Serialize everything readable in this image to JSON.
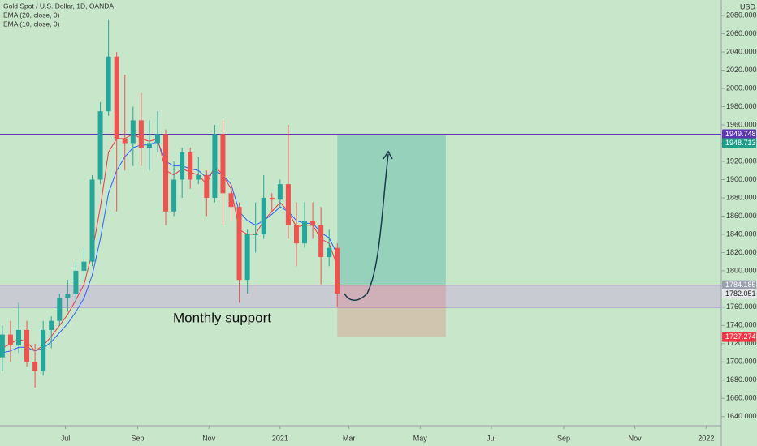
{
  "chart_data": {
    "type": "candlestick",
    "title": "Gold Spot / U.S. Dollar, 1D, OANDA",
    "y_axis_label": "USD",
    "x": [
      "2020-05-08",
      "2020-05-15",
      "2020-05-22",
      "2020-05-29",
      "2020-06-05",
      "2020-06-12",
      "2020-06-19",
      "2020-06-26",
      "2020-07-03",
      "2020-07-10",
      "2020-07-17",
      "2020-07-24",
      "2020-07-31",
      "2020-08-07",
      "2020-08-14",
      "2020-08-21",
      "2020-08-28",
      "2020-09-04",
      "2020-09-11",
      "2020-09-18",
      "2020-09-25",
      "2020-10-02",
      "2020-10-09",
      "2020-10-16",
      "2020-10-23",
      "2020-10-30",
      "2020-11-06",
      "2020-11-13",
      "2020-11-20",
      "2020-11-27",
      "2020-12-04",
      "2020-12-11",
      "2020-12-18",
      "2020-12-25",
      "2021-01-01",
      "2021-01-08",
      "2021-01-15",
      "2021-01-22",
      "2021-01-29",
      "2021-02-05",
      "2021-02-12",
      "2021-02-19"
    ],
    "open": [
      1705,
      1730,
      1718,
      1735,
      1700,
      1690,
      1735,
      1745,
      1770,
      1775,
      1800,
      1810,
      1900,
      1975,
      2035,
      1945,
      1940,
      1965,
      1935,
      1940,
      1950,
      1865,
      1900,
      1930,
      1900,
      1905,
      1880,
      1950,
      1885,
      1870,
      1790,
      1840,
      1840,
      1880,
      1878,
      1895,
      1850,
      1830,
      1855,
      1850,
      1815,
      1825
    ],
    "high": [
      1740,
      1745,
      1765,
      1745,
      1720,
      1745,
      1750,
      1775,
      1790,
      1810,
      1825,
      1905,
      1985,
      2075,
      2040,
      2015,
      1980,
      1995,
      1965,
      1975,
      1955,
      1920,
      1935,
      1935,
      1925,
      1910,
      1960,
      1965,
      1895,
      1875,
      1845,
      1875,
      1905,
      1885,
      1900,
      1960,
      1875,
      1875,
      1875,
      1870,
      1845,
      1830
    ],
    "low": [
      1690,
      1700,
      1710,
      1695,
      1672,
      1685,
      1715,
      1740,
      1755,
      1765,
      1790,
      1805,
      1895,
      1970,
      1865,
      1910,
      1915,
      1915,
      1910,
      1930,
      1850,
      1860,
      1880,
      1890,
      1895,
      1860,
      1875,
      1850,
      1855,
      1765,
      1775,
      1820,
      1835,
      1865,
      1870,
      1835,
      1805,
      1825,
      1835,
      1785,
      1805,
      1760
    ],
    "close": [
      1730,
      1718,
      1735,
      1700,
      1690,
      1735,
      1745,
      1770,
      1775,
      1800,
      1810,
      1900,
      1975,
      2035,
      1945,
      1940,
      1965,
      1935,
      1940,
      1950,
      1865,
      1900,
      1930,
      1900,
      1905,
      1880,
      1950,
      1885,
      1870,
      1790,
      1840,
      1840,
      1880,
      1878,
      1895,
      1850,
      1830,
      1855,
      1850,
      1815,
      1825,
      1775
    ],
    "up_color": "#26a69a",
    "down_color": "#ef5350",
    "series": [
      {
        "name": "EMA (20, close, 0)",
        "color": "#2962ff",
        "values": [
          1710,
          1712,
          1716,
          1716,
          1712,
          1715,
          1722,
          1732,
          1742,
          1755,
          1770,
          1795,
          1835,
          1885,
          1910,
          1925,
          1935,
          1938,
          1938,
          1942,
          1920,
          1915,
          1915,
          1912,
          1910,
          1902,
          1910,
          1905,
          1895,
          1865,
          1855,
          1850,
          1855,
          1862,
          1870,
          1865,
          1855,
          1852,
          1852,
          1842,
          1836,
          1818
        ]
      },
      {
        "name": "EMA (10, close, 0)",
        "color": "#f23645",
        "values": [
          1715,
          1720,
          1725,
          1722,
          1712,
          1718,
          1728,
          1740,
          1752,
          1768,
          1785,
          1820,
          1870,
          1930,
          1945,
          1945,
          1950,
          1945,
          1942,
          1945,
          1910,
          1905,
          1912,
          1908,
          1905,
          1895,
          1915,
          1905,
          1890,
          1845,
          1840,
          1840,
          1855,
          1865,
          1875,
          1865,
          1848,
          1850,
          1850,
          1835,
          1830,
          1805
        ]
      }
    ],
    "xlim": [
      "2020-05-06",
      "2022-01-14"
    ],
    "xticks": [
      {
        "value": "2020-07-01",
        "label": "Jul"
      },
      {
        "value": "2020-09-01",
        "label": "Sep"
      },
      {
        "value": "2020-11-01",
        "label": "Nov"
      },
      {
        "value": "2021-01-01",
        "label": "2021"
      },
      {
        "value": "2021-03-01",
        "label": "Mar"
      },
      {
        "value": "2021-05-01",
        "label": "May"
      },
      {
        "value": "2021-07-01",
        "label": "Jul"
      },
      {
        "value": "2021-09-01",
        "label": "Sep"
      },
      {
        "value": "2021-11-01",
        "label": "Nov"
      },
      {
        "value": "2022-01-01",
        "label": "2022"
      }
    ],
    "ylim": [
      1630,
      2097
    ],
    "yticks": [
      {
        "value": 1640,
        "label": "1640.000"
      },
      {
        "value": 1660,
        "label": "1660.000"
      },
      {
        "value": 1680,
        "label": "1680.000"
      },
      {
        "value": 1700,
        "label": "1700.000"
      },
      {
        "value": 1720,
        "label": "1720.000"
      },
      {
        "value": 1740,
        "label": "1740.000"
      },
      {
        "value": 1760,
        "label": "1760.000"
      },
      {
        "value": 1780,
        "label": "1780.000"
      },
      {
        "value": 1800,
        "label": "1800.000"
      },
      {
        "value": 1820,
        "label": "1820.000"
      },
      {
        "value": 1840,
        "label": "1840.000"
      },
      {
        "value": 1860,
        "label": "1860.000"
      },
      {
        "value": 1880,
        "label": "1880.000"
      },
      {
        "value": 1900,
        "label": "1900.000"
      },
      {
        "value": 1920,
        "label": "1920.000"
      },
      {
        "value": 1940,
        "label": "1940.000"
      },
      {
        "value": 1960,
        "label": "1960.000"
      },
      {
        "value": 1980,
        "label": "1980.000"
      },
      {
        "value": 2000,
        "label": "2000.000"
      },
      {
        "value": 2020,
        "label": "2020.000"
      },
      {
        "value": 2040,
        "label": "2040.000"
      },
      {
        "value": 2060,
        "label": "2060.000"
      },
      {
        "value": 2080,
        "label": "2080.000"
      }
    ],
    "annotation": "Monthly support",
    "resistance": 1949.748,
    "support_zone": [
      1760,
      1784.185
    ],
    "position": {
      "start": "2021-02-19",
      "end": "2021-05-23",
      "entry": 1784.185,
      "target": 1948.713,
      "stop": 1727.274
    },
    "last_price": 1782.051
  }
}
